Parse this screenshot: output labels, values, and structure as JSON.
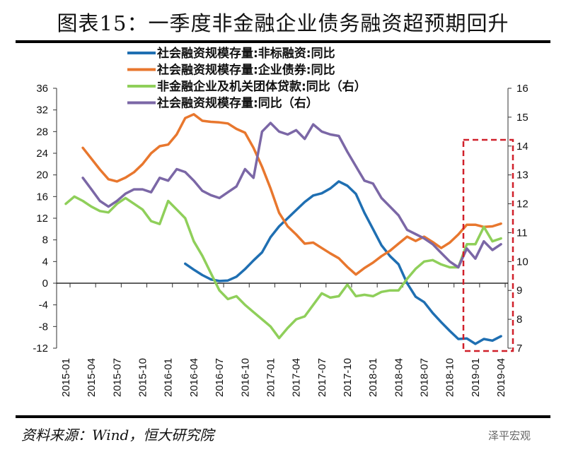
{
  "title": "图表15：一季度非金融企业债务融资超预期回升",
  "footer": "资料来源：Wind，恒大研究院",
  "watermark": "泽平宏观",
  "chart_data": {
    "type": "line",
    "title": "图表15：一季度非金融企业债务融资超预期回升",
    "x_start": "2015-01",
    "x_tick_labels": [
      "2015-01",
      "2015-04",
      "2015-07",
      "2015-10",
      "2016-01",
      "2016-04",
      "2016-07",
      "2016-10",
      "2017-01",
      "2017-04",
      "2017-07",
      "2017-10",
      "2018-01",
      "2018-04",
      "2018-07",
      "2018-10",
      "2019-01",
      "2019-04"
    ],
    "left_axis": {
      "ylim": [
        -12,
        36
      ],
      "ticks": [
        "36",
        "32",
        "28",
        "24",
        "20",
        "16",
        "12",
        "8",
        "4",
        "0",
        "-4",
        "-8",
        "-12"
      ]
    },
    "right_axis": {
      "ylim": [
        7,
        16
      ],
      "ticks": [
        "16",
        "15",
        "14",
        "13",
        "12",
        "11",
        "10",
        "9",
        "8",
        "7"
      ]
    },
    "annotation": "red dashed box highlighting 2019-01 to 2019-05",
    "series": [
      {
        "name": "社会融资规模存量:非标融资:同比",
        "color": "#1f6fb2",
        "axis": "left",
        "start": 14,
        "values": [
          3.6,
          2.5,
          1.5,
          0.7,
          0.4,
          0.5,
          1.2,
          2.6,
          4.2,
          5.7,
          8.5,
          10.5,
          12,
          13.5,
          15,
          16.2,
          16.6,
          17.5,
          18.8,
          18,
          16.5,
          13,
          10,
          7,
          5,
          3.5,
          0,
          -2.5,
          -3.5,
          -5.5,
          -7.2,
          -8.8,
          -10.3,
          -10.2,
          -11.2,
          -10.3,
          -10.6,
          -9.8
        ]
      },
      {
        "name": "社会融资规模存量:企业债券:同比",
        "color": "#e8772e",
        "axis": "left",
        "start": 2,
        "values": [
          25,
          23,
          21,
          19.2,
          18.8,
          19.5,
          20.5,
          22,
          24,
          25.3,
          25.6,
          27.5,
          30.5,
          31.2,
          30,
          29.8,
          29.7,
          29.5,
          28.5,
          27.8,
          25,
          21.5,
          17.5,
          13,
          10.5,
          9,
          7.3,
          7.5,
          6.5,
          5.5,
          4.6,
          3,
          1.6,
          2.8,
          3.8,
          5,
          6,
          7.3,
          8.6,
          7.8,
          8.6,
          7.6,
          6.5,
          7.5,
          9,
          10.8,
          10.8,
          10.4,
          10.5,
          11
        ]
      },
      {
        "name": "非金融企业及机关团体贷款:同比（右）",
        "color": "#8fcf5a",
        "axis": "right",
        "start": 0,
        "values": [
          12.0,
          12.25,
          12.1,
          11.9,
          11.75,
          11.7,
          12.0,
          12.2,
          12.0,
          11.8,
          11.4,
          11.3,
          12.1,
          11.8,
          11.5,
          10.7,
          10.2,
          9.6,
          9.0,
          8.7,
          8.8,
          8.5,
          8.25,
          8.0,
          7.75,
          7.35,
          7.7,
          8.0,
          8.1,
          8.5,
          8.9,
          8.75,
          8.8,
          9.2,
          8.8,
          8.85,
          8.8,
          8.95,
          9.0,
          9.0,
          9.4,
          9.75,
          10.0,
          10.05,
          9.9,
          9.8,
          9.8,
          10.6,
          10.6,
          11.2,
          10.7,
          10.8
        ]
      },
      {
        "name": "社会融资规模存量:同比（右）",
        "color": "#7b67a6",
        "axis": "right",
        "start": 2,
        "values": [
          12.9,
          12.5,
          12.1,
          11.9,
          12.1,
          12.35,
          12.5,
          12.5,
          12.4,
          12.9,
          12.8,
          13.2,
          13.1,
          12.8,
          12.45,
          12.3,
          12.2,
          12.4,
          12.6,
          13.2,
          12.9,
          14.5,
          14.8,
          14.5,
          14.4,
          14.55,
          14.25,
          14.75,
          14.5,
          14.4,
          14.35,
          13.8,
          13.3,
          12.8,
          12.7,
          12.2,
          11.9,
          11.6,
          11.1,
          10.95,
          10.8,
          10.6,
          10.3,
          10.0,
          9.8,
          10.45,
          10.1,
          10.7,
          10.4,
          10.6
        ]
      }
    ],
    "legend_position": "top-center"
  }
}
